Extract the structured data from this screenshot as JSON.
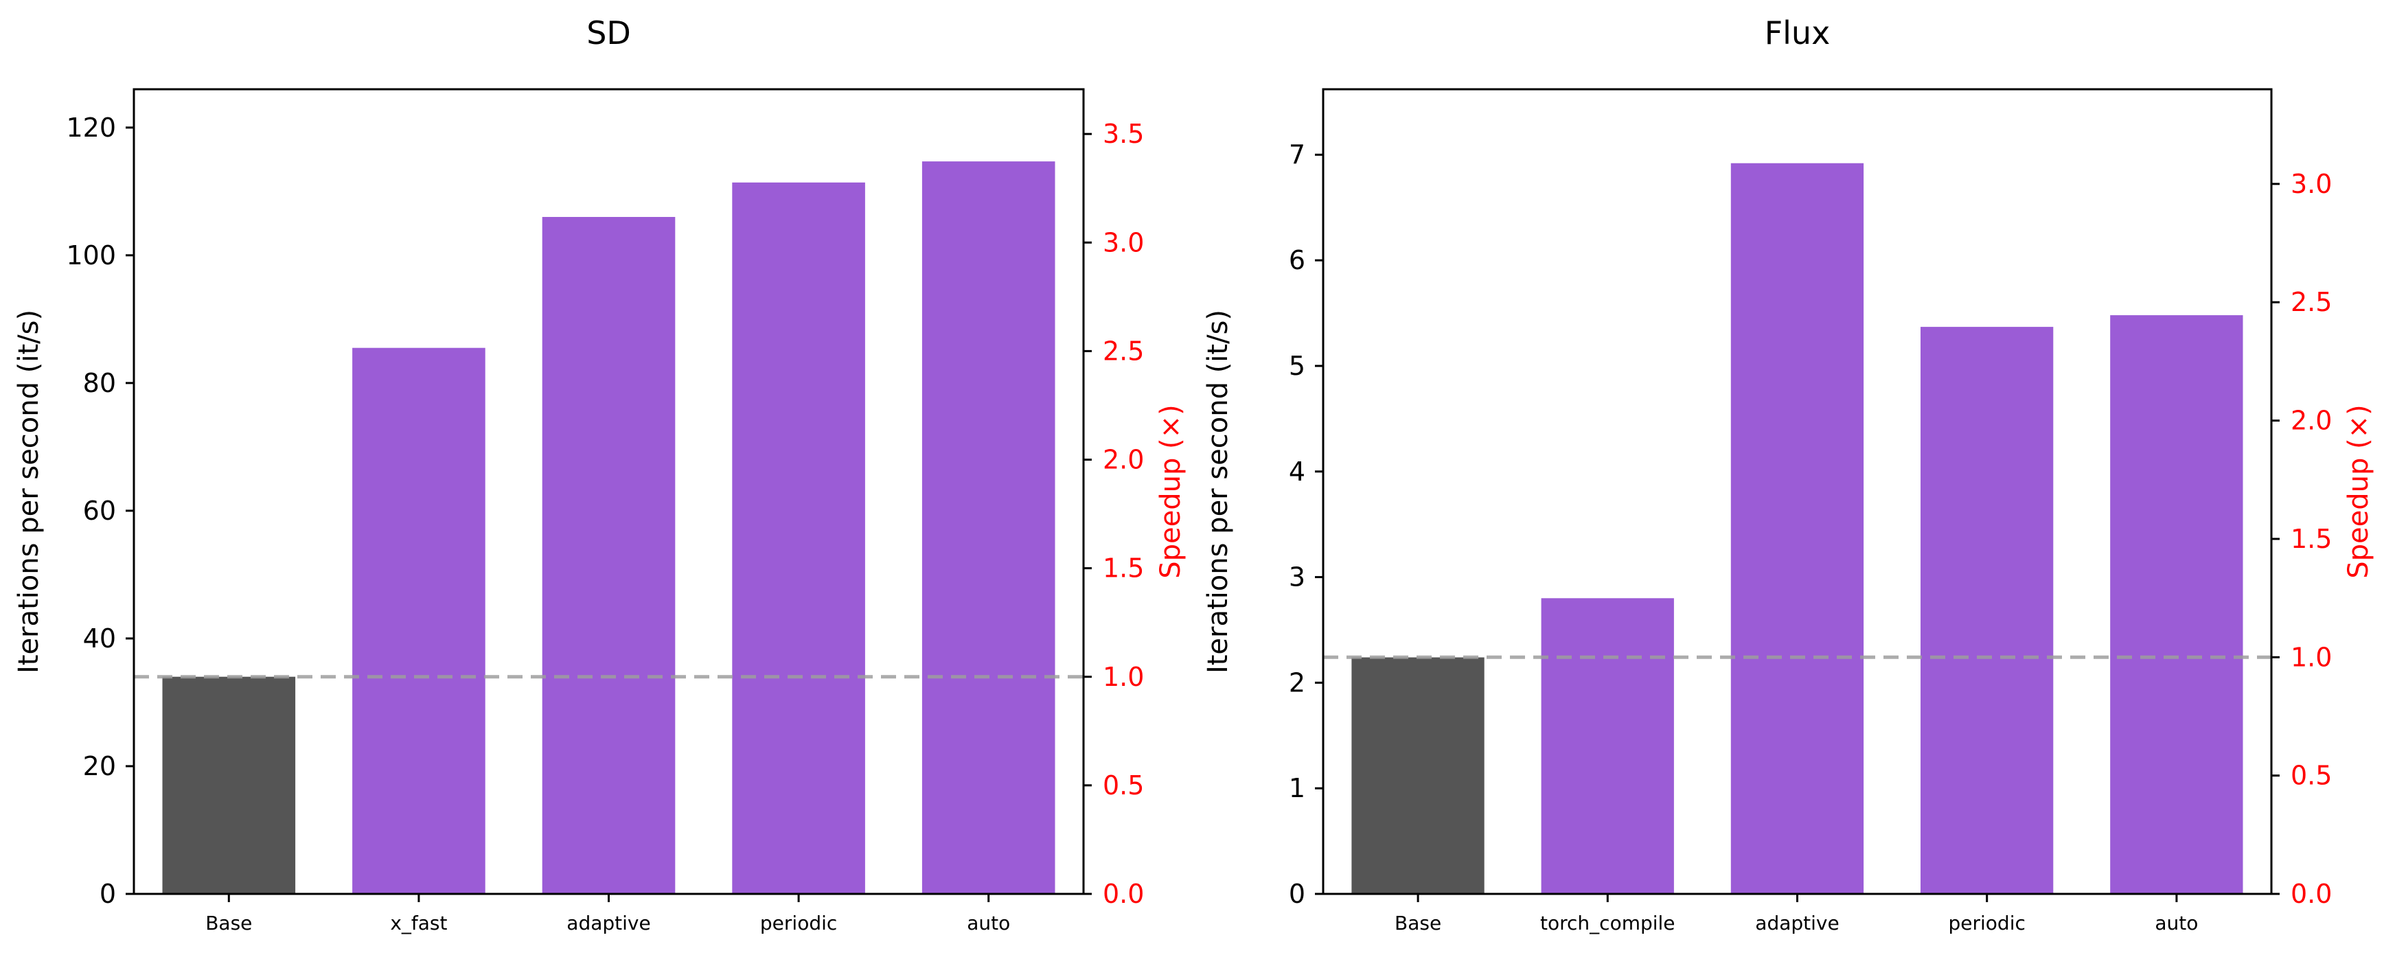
{
  "chart_data": [
    {
      "type": "bar",
      "title": "SD",
      "categories": [
        "Base",
        "x_fast",
        "adaptive",
        "periodic",
        "auto"
      ],
      "values": [
        34.0,
        85.5,
        106.0,
        111.4,
        114.7
      ],
      "ylabel": "Iterations per second (it/s)",
      "ylim": [
        0,
        126
      ],
      "yticks": [
        0,
        20,
        40,
        60,
        80,
        100,
        120
      ],
      "y2label": "Speedup (×)",
      "y2lim": [
        0,
        3.706
      ],
      "y2ticks": [
        "0.0",
        "0.5",
        "1.0",
        "1.5",
        "2.0",
        "2.5",
        "3.0",
        "3.5"
      ],
      "reference_line": 1.0,
      "bar_colors": [
        "#555555",
        "#9b5cd6",
        "#9b5cd6",
        "#9b5cd6",
        "#9b5cd6"
      ],
      "right_axis_color": "#ff0000",
      "reference_color": "#9e9e9e"
    },
    {
      "type": "bar",
      "title": "Flux",
      "categories": [
        "Base",
        "torch_compile",
        "adaptive",
        "periodic",
        "auto"
      ],
      "values": [
        2.24,
        2.8,
        6.92,
        5.37,
        5.48
      ],
      "ylabel": "Iterations per second (it/s)",
      "ylim": [
        0,
        7.62
      ],
      "yticks": [
        0,
        1,
        2,
        3,
        4,
        5,
        6,
        7
      ],
      "y2label": "Speedup (×)",
      "y2lim": [
        0,
        3.4
      ],
      "y2ticks": [
        "0.0",
        "0.5",
        "1.0",
        "1.5",
        "2.0",
        "2.5",
        "3.0"
      ],
      "reference_line": 1.0,
      "bar_colors": [
        "#555555",
        "#9b5cd6",
        "#9b5cd6",
        "#9b5cd6",
        "#9b5cd6"
      ],
      "right_axis_color": "#ff0000",
      "reference_color": "#9e9e9e"
    }
  ]
}
